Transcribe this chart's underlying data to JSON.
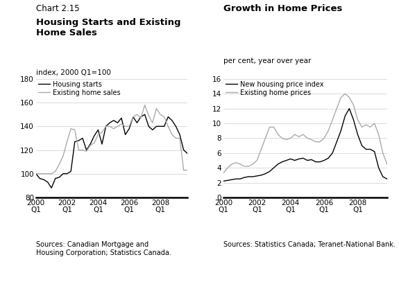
{
  "chart1_subtitle": "Chart 2.15",
  "chart1_title": "Housing Starts and Existing\nHome Sales",
  "chart1_ylabel": "index, 2000 Q1=100",
  "chart1_ylim": [
    80,
    180
  ],
  "chart1_yticks": [
    80,
    100,
    120,
    140,
    160,
    180
  ],
  "chart1_source": "Sources: Canadian Mortgage and\nHousing Corporation; Statistics Canada.",
  "chart1_legend": [
    "Housing starts",
    "Existing home sales"
  ],
  "chart2_title": "Growth in Home Prices",
  "chart2_ylabel": "per cent, year over year",
  "chart2_ylim": [
    0,
    16
  ],
  "chart2_yticks": [
    0,
    2,
    4,
    6,
    8,
    10,
    12,
    14,
    16
  ],
  "chart2_source": "Sources: Statistics Canada; Teranet-National Bank.",
  "chart2_legend": [
    "New housing price index",
    "Existing home prices"
  ],
  "x_labels": [
    "2000\nQ1",
    "2002\nQ1",
    "2004\nQ1",
    "2006\nQ1",
    "2008\nQ1"
  ],
  "x_ticks": [
    0,
    8,
    16,
    24,
    32
  ],
  "housing_starts": [
    100,
    96,
    95,
    93,
    88,
    96,
    97,
    100,
    100,
    102,
    127,
    128,
    130,
    120,
    125,
    132,
    137,
    125,
    140,
    143,
    145,
    143,
    147,
    133,
    138,
    148,
    143,
    148,
    150,
    140,
    137,
    140,
    140,
    140,
    148,
    145,
    140,
    133,
    120,
    117
  ],
  "existing_home_sales": [
    100,
    100,
    100,
    100,
    100,
    102,
    108,
    115,
    127,
    138,
    137,
    120,
    120,
    119,
    124,
    126,
    133,
    135,
    140,
    140,
    138,
    140,
    142,
    140,
    140,
    148,
    150,
    147,
    158,
    149,
    143,
    155,
    150,
    148,
    140,
    133,
    130,
    130,
    103,
    103
  ],
  "new_housing_price_index": [
    2.2,
    2.3,
    2.4,
    2.5,
    2.5,
    2.7,
    2.8,
    2.8,
    2.9,
    3.0,
    3.2,
    3.5,
    4.0,
    4.5,
    4.8,
    5.0,
    5.2,
    5.0,
    5.2,
    5.3,
    5.0,
    5.1,
    4.8,
    4.8,
    5.0,
    5.3,
    6.0,
    7.5,
    9.0,
    11.0,
    12.0,
    10.5,
    8.5,
    7.0,
    6.5,
    6.5,
    6.2,
    4.0,
    2.8,
    2.5
  ],
  "existing_home_prices": [
    3.3,
    4.0,
    4.5,
    4.7,
    4.5,
    4.2,
    4.2,
    4.5,
    5.0,
    6.5,
    8.0,
    9.5,
    9.5,
    8.5,
    8.0,
    7.8,
    8.0,
    8.5,
    8.2,
    8.5,
    8.0,
    7.8,
    7.5,
    7.5,
    8.0,
    9.0,
    10.5,
    12.0,
    13.5,
    14.0,
    13.5,
    12.5,
    10.5,
    9.5,
    9.8,
    9.5,
    10.0,
    8.5,
    6.0,
    4.5
  ]
}
